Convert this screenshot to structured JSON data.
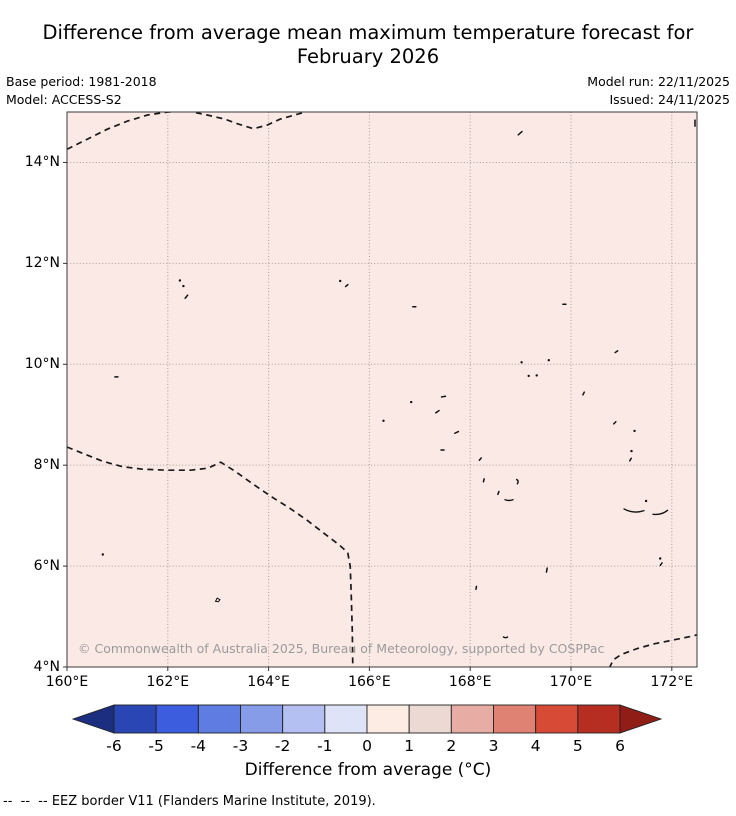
{
  "header": {
    "title_line1": "Difference from average mean maximum temperature forecast for",
    "title_line2": "February 2026",
    "base_period": "Base period: 1981-2018",
    "model": "Model: ACCESS-S2",
    "model_run": "Model run: 22/11/2025",
    "issued": "Issued: 24/11/2025"
  },
  "map_overlay": {
    "copyright": "© Commonwealth of Australia 2025, Bureau of Meteorology, supported by COSPPac"
  },
  "footnote": {
    "dashes": "--  --  --",
    "text": " EEZ border V11 (Flanders Marine Institute, 2019)."
  },
  "chart_data": {
    "type": "heatmap",
    "title": "Difference from average mean maximum temperature forecast for February 2026",
    "field": "mean maximum temperature anomaly vs 1981-2018 base period",
    "units": "°C",
    "value_summary": "entire shown ocean domain is shaded in the 0 to +1 °C anomaly bin",
    "map_fill_color": "#fbe9e5",
    "grid": true,
    "grid_color": "#ab9c98",
    "spine_color": "#3a3a3a",
    "eez_line_color": "#1a1a1a",
    "island_color": "#111111",
    "geo": {
      "lon_min": 160,
      "lon_max": 172.5,
      "lat_min": 4,
      "lat_max": 15
    },
    "x_ticks": [
      {
        "lon": 160,
        "label": "160°E"
      },
      {
        "lon": 162,
        "label": "162°E"
      },
      {
        "lon": 164,
        "label": "164°E"
      },
      {
        "lon": 166,
        "label": "166°E"
      },
      {
        "lon": 168,
        "label": "168°E"
      },
      {
        "lon": 170,
        "label": "170°E"
      },
      {
        "lon": 172,
        "label": "172°E"
      }
    ],
    "y_ticks": [
      {
        "lat": 4,
        "label": "4°N"
      },
      {
        "lat": 6,
        "label": "6°N"
      },
      {
        "lat": 8,
        "label": "8°N"
      },
      {
        "lat": 10,
        "label": "10°N"
      },
      {
        "lat": 12,
        "label": "12°N"
      },
      {
        "lat": 14,
        "label": "14°N"
      }
    ],
    "colorbar": {
      "label": "Difference from average (°C)",
      "tick_values": [
        -6,
        -5,
        -4,
        -3,
        -2,
        -1,
        0,
        1,
        2,
        3,
        4,
        5,
        6
      ],
      "cell_colors": [
        "#2a46b4",
        "#3c5ede",
        "#5e7ce2",
        "#879ce9",
        "#b3c0f1",
        "#dfe3f8",
        "#fcece4",
        "#ecd9d3",
        "#e7ada4",
        "#e08273",
        "#d74a36",
        "#b62d22"
      ],
      "under_color": "#1c2e80",
      "over_color": "#901d16",
      "cell_border_color": "#222222"
    },
    "eez_borders": [
      [
        [
          160.0,
          14.26
        ],
        [
          160.4,
          14.46
        ],
        [
          160.8,
          14.66
        ],
        [
          161.2,
          14.82
        ],
        [
          161.6,
          14.94
        ],
        [
          162.0,
          15.0
        ],
        [
          162.4,
          15.02
        ],
        [
          162.78,
          14.94
        ],
        [
          163.13,
          14.86
        ],
        [
          163.4,
          14.76
        ],
        [
          163.7,
          14.67
        ],
        [
          163.97,
          14.74
        ],
        [
          164.23,
          14.86
        ],
        [
          164.52,
          14.94
        ],
        [
          164.8,
          15.02
        ],
        [
          165.0,
          15.08
        ]
      ],
      [
        [
          160.0,
          8.36
        ],
        [
          160.35,
          8.22
        ],
        [
          160.7,
          8.08
        ],
        [
          161.1,
          7.97
        ],
        [
          161.5,
          7.92
        ],
        [
          162.0,
          7.9
        ],
        [
          162.45,
          7.9
        ],
        [
          162.8,
          7.94
        ],
        [
          163.05,
          8.06
        ],
        [
          163.35,
          7.87
        ],
        [
          163.7,
          7.62
        ],
        [
          164.05,
          7.38
        ],
        [
          164.4,
          7.16
        ],
        [
          164.75,
          6.92
        ],
        [
          165.1,
          6.65
        ],
        [
          165.4,
          6.42
        ],
        [
          165.57,
          6.27
        ],
        [
          165.62,
          6.0
        ],
        [
          165.64,
          5.4
        ],
        [
          165.66,
          4.7
        ],
        [
          165.67,
          3.98
        ]
      ],
      [
        [
          170.76,
          3.98
        ],
        [
          170.84,
          4.14
        ],
        [
          171.0,
          4.25
        ],
        [
          171.3,
          4.36
        ],
        [
          171.65,
          4.46
        ],
        [
          172.0,
          4.53
        ],
        [
          172.35,
          4.6
        ],
        [
          172.52,
          4.64
        ]
      ]
    ],
    "islands": [
      {
        "lon": 162.24,
        "lat": 11.66,
        "kind": "dot"
      },
      {
        "lon": 162.31,
        "lat": 11.55,
        "kind": "dot"
      },
      {
        "lon": 162.37,
        "lat": 11.34,
        "kind": "dash",
        "rot": -50,
        "len": 4
      },
      {
        "lon": 165.42,
        "lat": 11.65,
        "kind": "dot"
      },
      {
        "lon": 165.55,
        "lat": 11.56,
        "kind": "dash",
        "rot": -40,
        "len": 3
      },
      {
        "lon": 160.98,
        "lat": 9.75,
        "kind": "dash",
        "rot": 0,
        "len": 3
      },
      {
        "lon": 168.99,
        "lat": 14.58,
        "kind": "dash",
        "rot": -42,
        "len": 5
      },
      {
        "lon": 172.46,
        "lat": 14.78,
        "kind": "dash",
        "rot": 90,
        "len": 6
      },
      {
        "lon": 166.89,
        "lat": 11.14,
        "kind": "dash",
        "rot": 0,
        "len": 3
      },
      {
        "lon": 169.87,
        "lat": 11.19,
        "kind": "dash",
        "rot": 0,
        "len": 3
      },
      {
        "lon": 170.9,
        "lat": 10.25,
        "kind": "dash",
        "rot": -35,
        "len": 3
      },
      {
        "lon": 169.02,
        "lat": 10.04,
        "kind": "dot"
      },
      {
        "lon": 169.56,
        "lat": 10.08,
        "kind": "dot"
      },
      {
        "lon": 169.16,
        "lat": 9.77,
        "kind": "dot"
      },
      {
        "lon": 169.32,
        "lat": 9.78,
        "kind": "dot"
      },
      {
        "lon": 170.25,
        "lat": 9.42,
        "kind": "dash",
        "rot": -65,
        "len": 3
      },
      {
        "lon": 167.47,
        "lat": 9.36,
        "kind": "dash",
        "rot": -10,
        "len": 4
      },
      {
        "lon": 166.83,
        "lat": 9.25,
        "kind": "dot"
      },
      {
        "lon": 167.35,
        "lat": 9.06,
        "kind": "dash",
        "rot": -35,
        "len": 4
      },
      {
        "lon": 166.28,
        "lat": 8.88,
        "kind": "dot"
      },
      {
        "lon": 167.73,
        "lat": 8.65,
        "kind": "dash",
        "rot": -25,
        "len": 4
      },
      {
        "lon": 167.45,
        "lat": 8.3,
        "kind": "dash",
        "rot": 0,
        "len": 3
      },
      {
        "lon": 168.2,
        "lat": 8.12,
        "kind": "dash",
        "rot": -50,
        "len": 3
      },
      {
        "lon": 170.87,
        "lat": 8.84,
        "kind": "dash",
        "rot": -45,
        "len": 3
      },
      {
        "lon": 171.26,
        "lat": 8.68,
        "kind": "dot"
      },
      {
        "lon": 171.2,
        "lat": 8.28,
        "kind": "dot"
      },
      {
        "lon": 171.18,
        "lat": 8.11,
        "kind": "dash",
        "rot": -60,
        "len": 3
      },
      {
        "lon": 168.27,
        "lat": 7.7,
        "kind": "dash",
        "rot": -75,
        "len": 3
      },
      {
        "lon": 168.93,
        "lat": 7.67,
        "kind": "hook",
        "rot": 0,
        "len": 5
      },
      {
        "lon": 168.56,
        "lat": 7.45,
        "kind": "dash",
        "rot": -70,
        "len": 3
      },
      {
        "lon": 168.77,
        "lat": 7.32,
        "kind": "arc",
        "rot": 0,
        "len": 9
      },
      {
        "lon": 171.25,
        "lat": 7.12,
        "kind": "arc",
        "rot": 5,
        "len": 21
      },
      {
        "lon": 171.77,
        "lat": 7.07,
        "kind": "arc",
        "rot": -15,
        "len": 16
      },
      {
        "lon": 171.49,
        "lat": 7.29,
        "kind": "dot"
      },
      {
        "lon": 171.77,
        "lat": 6.15,
        "kind": "dot"
      },
      {
        "lon": 171.79,
        "lat": 6.04,
        "kind": "dash",
        "rot": -55,
        "len": 3
      },
      {
        "lon": 169.52,
        "lat": 5.92,
        "kind": "dash",
        "rot": -80,
        "len": 4
      },
      {
        "lon": 168.12,
        "lat": 5.57,
        "kind": "dash",
        "rot": -80,
        "len": 3
      },
      {
        "lon": 168.7,
        "lat": 4.6,
        "kind": "arc",
        "rot": 0,
        "len": 5
      },
      {
        "lon": 160.71,
        "lat": 6.23,
        "kind": "dot"
      },
      {
        "lon": 162.99,
        "lat": 5.33,
        "kind": "ring",
        "rot": 0,
        "len": 5
      }
    ]
  }
}
